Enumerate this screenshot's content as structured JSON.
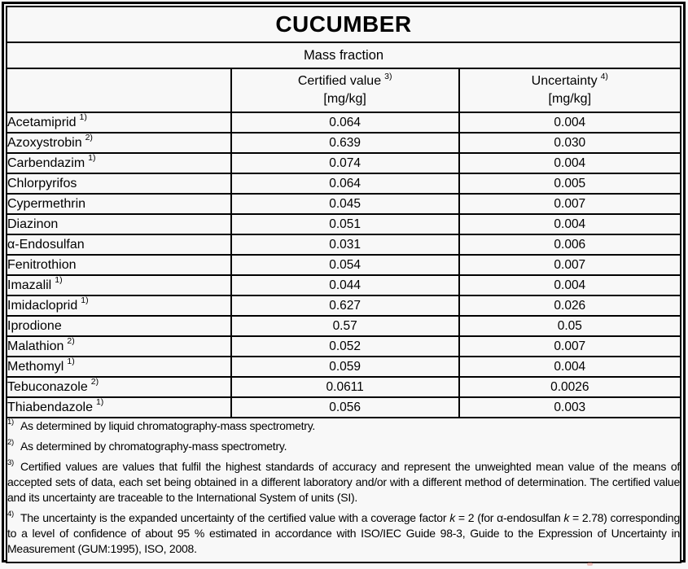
{
  "title": "CUCUMBER",
  "subtitle": "Mass fraction",
  "columns": {
    "certified": {
      "label": "Certified value",
      "sup": "3)",
      "unit": "[mg/kg]"
    },
    "uncertainty": {
      "label": "Uncertainty",
      "sup": "4)",
      "unit": "[mg/kg]"
    }
  },
  "rows": [
    {
      "analyte": "Acetamiprid",
      "sup": "1)",
      "certified": "0.064",
      "uncertainty": "0.004"
    },
    {
      "analyte": "Azoxystrobin",
      "sup": "2)",
      "certified": "0.639",
      "uncertainty": "0.030"
    },
    {
      "analyte": "Carbendazim",
      "sup": "1)",
      "certified": "0.074",
      "uncertainty": "0.004"
    },
    {
      "analyte": "Chlorpyrifos",
      "sup": "",
      "certified": "0.064",
      "uncertainty": "0.005"
    },
    {
      "analyte": "Cypermethrin",
      "sup": "",
      "certified": "0.045",
      "uncertainty": "0.007"
    },
    {
      "analyte": "Diazinon",
      "sup": "",
      "certified": "0.051",
      "uncertainty": "0.004"
    },
    {
      "analyte": "α-Endosulfan",
      "sup": "",
      "certified": "0.031",
      "uncertainty": "0.006"
    },
    {
      "analyte": "Fenitrothion",
      "sup": "",
      "certified": "0.054",
      "uncertainty": "0.007"
    },
    {
      "analyte": "Imazalil",
      "sup": "1)",
      "certified": "0.044",
      "uncertainty": "0.004"
    },
    {
      "analyte": "Imidacloprid",
      "sup": "1)",
      "certified": "0.627",
      "uncertainty": "0.026"
    },
    {
      "analyte": "Iprodione",
      "sup": "",
      "certified": "0.57",
      "uncertainty": "0.05"
    },
    {
      "analyte": "Malathion",
      "sup": "2)",
      "certified": "0.052",
      "uncertainty": "0.007"
    },
    {
      "analyte": "Methomyl",
      "sup": "1)",
      "certified": "0.059",
      "uncertainty": "0.004"
    },
    {
      "analyte": "Tebuconazole",
      "sup": "2)",
      "certified": "0.0611",
      "uncertainty": "0.0026"
    },
    {
      "analyte": "Thiabendazole",
      "sup": "1)",
      "certified": "0.056",
      "uncertainty": "0.003"
    }
  ],
  "footnotes": {
    "fn1": {
      "sup": "1)",
      "text": "As determined by liquid chromatography-mass spectrometry."
    },
    "fn2": {
      "sup": "2)",
      "text": "As determined by chromatography-mass spectrometry."
    },
    "fn3": {
      "sup": "3)",
      "text": "Certified values are values that fulfil the highest standards of accuracy and represent the unweighted mean value of the means of accepted sets of data, each set being obtained in a different laboratory and/or with a different method of determination. The certified value and its uncertainty are traceable to the International System of units (SI)."
    },
    "fn4": {
      "sup": "4)",
      "segments": [
        "The uncertainty is the expanded uncertainty of the certified value with a coverage factor ",
        "k",
        " = 2 (for α-endosulfan ",
        "k",
        " = 2.78) corresponding to a level of confidence of about 95 % estimated in accordance with ISO/IEC Guide 98-3, Guide to the Expression of Uncertainty in Measurement (GUM:1995), ISO, 2008."
      ]
    }
  },
  "colors": {
    "background": "#f8f8f8",
    "border": "#000000",
    "text": "#000000"
  }
}
